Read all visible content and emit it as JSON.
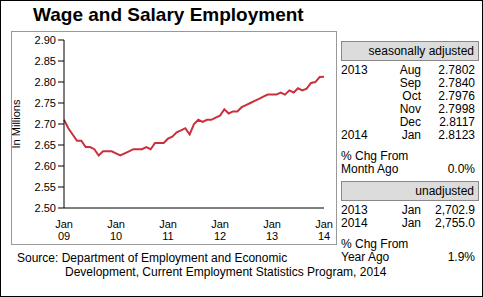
{
  "chart_data": {
    "type": "line",
    "title": "Wage and Salary Employment",
    "y_label": "In Millions",
    "color": "#cc2f3c",
    "grid": false,
    "categories": [
      "Jan 09",
      null,
      null,
      null,
      null,
      null,
      null,
      null,
      null,
      null,
      null,
      null,
      "Jan 10",
      null,
      null,
      null,
      null,
      null,
      null,
      null,
      null,
      null,
      null,
      null,
      "Jan 11",
      null,
      null,
      null,
      null,
      null,
      null,
      null,
      null,
      null,
      null,
      null,
      "Jan 12",
      null,
      null,
      null,
      null,
      null,
      null,
      null,
      null,
      null,
      null,
      null,
      "Jan 13",
      null,
      null,
      null,
      null,
      null,
      null,
      null,
      null,
      null,
      null,
      null,
      "Jan 14"
    ],
    "values": [
      2.71,
      2.69,
      2.675,
      2.66,
      2.66,
      2.645,
      2.645,
      2.64,
      2.625,
      2.635,
      2.635,
      2.635,
      2.63,
      2.625,
      2.63,
      2.635,
      2.64,
      2.64,
      2.64,
      2.645,
      2.64,
      2.655,
      2.655,
      2.655,
      2.665,
      2.67,
      2.68,
      2.685,
      2.69,
      2.675,
      2.7,
      2.71,
      2.705,
      2.71,
      2.71,
      2.715,
      2.72,
      2.735,
      2.725,
      2.73,
      2.73,
      2.74,
      2.745,
      2.75,
      2.755,
      2.76,
      2.765,
      2.77,
      2.77,
      2.77,
      2.775,
      2.77,
      2.78,
      2.775,
      2.785,
      2.7802,
      2.784,
      2.7976,
      2.7998,
      2.8117,
      2.8123
    ],
    "ylim": [
      2.5,
      2.9
    ],
    "yticks": [
      {
        "value": 2.5,
        "label": "2.50"
      },
      {
        "value": 2.55,
        "label": "2.55"
      },
      {
        "value": 2.6,
        "label": "2.60"
      },
      {
        "value": 2.65,
        "label": "2.65"
      },
      {
        "value": 2.7,
        "label": "2.70"
      },
      {
        "value": 2.75,
        "label": "2.75"
      },
      {
        "value": 2.8,
        "label": "2.80"
      },
      {
        "value": 2.85,
        "label": "2.85"
      },
      {
        "value": 2.9,
        "label": "2.90"
      }
    ]
  },
  "panel": {
    "seasonally_adjusted": {
      "header": "seasonally adjusted",
      "rows": [
        {
          "year": "2013",
          "month": "Aug",
          "value": "2.7802"
        },
        {
          "month": "Sep",
          "value": "2.7840"
        },
        {
          "month": "Oct",
          "value": "2.7976"
        },
        {
          "month": "Nov",
          "value": "2.7998"
        },
        {
          "month": "Dec",
          "value": "2.8117"
        },
        {
          "year": "2014",
          "month": "Jan",
          "value": "2.8123"
        }
      ],
      "change_label": [
        "% Chg From",
        "Month Ago"
      ],
      "change_value": "0.0%"
    },
    "unadjusted": {
      "header": "unadjusted",
      "rows": [
        {
          "year": "2013",
          "month": "Jan",
          "value": "2,702.9"
        },
        {
          "year": "2014",
          "month": "Jan",
          "value": "2,755.0"
        }
      ],
      "change_label": [
        "% Chg From",
        "Year Ago"
      ],
      "change_value": "1.9%"
    }
  },
  "source": [
    "Source: Department of Employment and Economic",
    "Development, Current Employment Statistics Program, 2014"
  ]
}
